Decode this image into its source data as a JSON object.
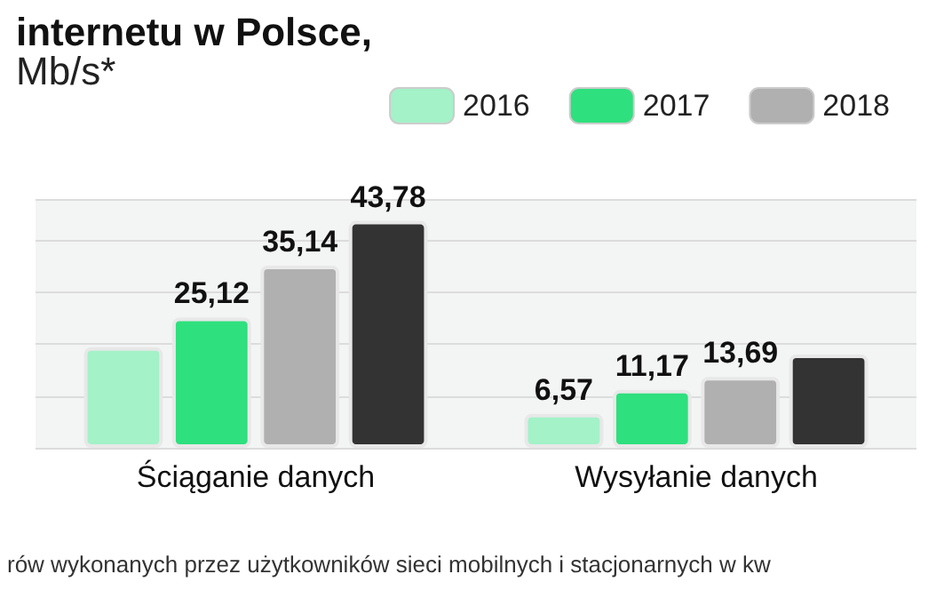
{
  "chart_data": {
    "type": "bar",
    "title": "internetu w Polsce,",
    "subtitle": "Mb/s*",
    "categories": [
      "Ściąganie danych",
      "Wysyłanie danych"
    ],
    "series": [
      {
        "name": "2016",
        "color": "#a3f2c8",
        "values": [
          19.4,
          6.57
        ],
        "value_labels": [
          null,
          "6,57"
        ]
      },
      {
        "name": "2017",
        "color": "#2ee07e",
        "values": [
          25.12,
          11.17
        ],
        "value_labels": [
          "25,12",
          "11,17"
        ]
      },
      {
        "name": "2018",
        "color": "#b0b0b0",
        "values": [
          35.14,
          13.69
        ],
        "value_labels": [
          "35,14",
          "13,69"
        ]
      },
      {
        "color": "#333333",
        "values": [
          43.78,
          18.0
        ],
        "value_labels": [
          "43,78",
          null
        ]
      }
    ],
    "ylim": [
      0,
      48
    ],
    "grid": "y",
    "legend": "top right",
    "tick_labels": "x",
    "annotations": [
      "rów wykonanych przez użytkowników sieci mobilnych i stacjonarnych w kw"
    ]
  }
}
